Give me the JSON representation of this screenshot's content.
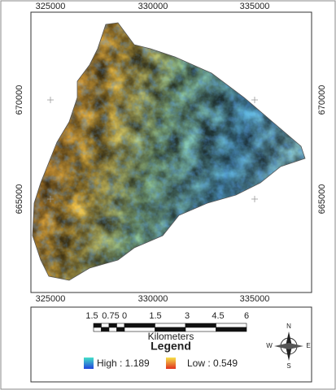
{
  "map": {
    "x_labels": [
      325000,
      330000,
      335000
    ],
    "y_labels": [
      670000,
      665000
    ],
    "scale": {
      "labels": [
        "1.5",
        "0.75",
        "0",
        "1.5",
        "3",
        "4.5",
        "6"
      ],
      "unit": "Kilometers"
    },
    "legend": {
      "title": "Legend",
      "high": "High : 1.189",
      "low": "Low : 0.549"
    },
    "compass": {
      "n": "N",
      "e": "E",
      "s": "S",
      "w": "W"
    }
  }
}
